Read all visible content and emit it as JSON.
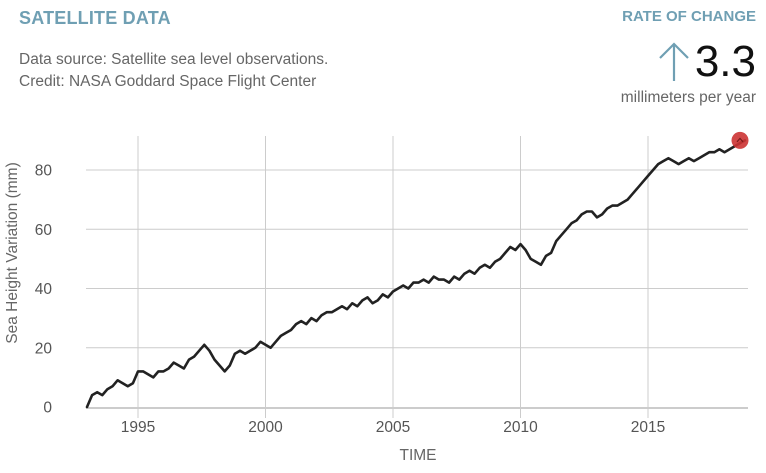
{
  "header": {
    "title": "SATELLITE DATA",
    "source_line1": "Data source: Satellite sea level observations.",
    "source_line2": "Credit: NASA Goddard Space Flight Center"
  },
  "rate": {
    "label": "RATE OF CHANGE",
    "arrow_icon": "up-arrow-icon",
    "value": "3.3",
    "unit": "millimeters per year"
  },
  "colors": {
    "accent": "#6f9fb3",
    "line": "#222222",
    "marker": "#cc3333",
    "grid": "#cccccc"
  },
  "chart_data": {
    "type": "line",
    "xlabel": "TIME",
    "ylabel": "Sea Height Variation (mm)",
    "xlim": [
      1993.0,
      2018.9
    ],
    "ylim": [
      0,
      90
    ],
    "x_ticks": [
      1995,
      2000,
      2005,
      2010,
      2015
    ],
    "y_ticks": [
      0,
      20,
      40,
      60,
      80
    ],
    "grid": true,
    "series": [
      {
        "x": [
          1993.0,
          1993.2,
          1993.4,
          1993.6,
          1993.8,
          1994.0,
          1994.2,
          1994.4,
          1994.6,
          1994.8,
          1995.0,
          1995.2,
          1995.4,
          1995.6,
          1995.8,
          1996.0,
          1996.2,
          1996.4,
          1996.6,
          1996.8,
          1997.0,
          1997.2,
          1997.4,
          1997.6,
          1997.8,
          1998.0,
          1998.2,
          1998.4,
          1998.6,
          1998.8,
          1999.0,
          1999.2,
          1999.4,
          1999.6,
          1999.8,
          2000.0,
          2000.2,
          2000.4,
          2000.6,
          2000.8,
          2001.0,
          2001.2,
          2001.4,
          2001.6,
          2001.8,
          2002.0,
          2002.2,
          2002.4,
          2002.6,
          2002.8,
          2003.0,
          2003.2,
          2003.4,
          2003.6,
          2003.8,
          2004.0,
          2004.2,
          2004.4,
          2004.6,
          2004.8,
          2005.0,
          2005.2,
          2005.4,
          2005.6,
          2005.8,
          2006.0,
          2006.2,
          2006.4,
          2006.6,
          2006.8,
          2007.0,
          2007.2,
          2007.4,
          2007.6,
          2007.8,
          2008.0,
          2008.2,
          2008.4,
          2008.6,
          2008.8,
          2009.0,
          2009.2,
          2009.4,
          2009.6,
          2009.8,
          2010.0,
          2010.2,
          2010.4,
          2010.6,
          2010.8,
          2011.0,
          2011.2,
          2011.4,
          2011.6,
          2011.8,
          2012.0,
          2012.2,
          2012.4,
          2012.6,
          2012.8,
          2013.0,
          2013.2,
          2013.4,
          2013.6,
          2013.8,
          2014.0,
          2014.2,
          2014.4,
          2014.6,
          2014.8,
          2015.0,
          2015.2,
          2015.4,
          2015.6,
          2015.8,
          2016.0,
          2016.2,
          2016.4,
          2016.6,
          2016.8,
          2017.0,
          2017.2,
          2017.4,
          2017.6,
          2017.8,
          2018.0,
          2018.2,
          2018.4,
          2018.6,
          2018.8
        ],
        "y": [
          0,
          4,
          5,
          4,
          6,
          7,
          9,
          8,
          7,
          8,
          12,
          12,
          11,
          10,
          12,
          12,
          13,
          15,
          14,
          13,
          16,
          17,
          19,
          21,
          19,
          16,
          14,
          12,
          14,
          18,
          19,
          18,
          19,
          20,
          22,
          21,
          20,
          22,
          24,
          25,
          26,
          28,
          29,
          28,
          30,
          29,
          31,
          32,
          32,
          33,
          34,
          33,
          35,
          34,
          36,
          37,
          35,
          36,
          38,
          37,
          39,
          40,
          41,
          40,
          42,
          42,
          43,
          42,
          44,
          43,
          43,
          42,
          44,
          43,
          45,
          46,
          45,
          47,
          48,
          47,
          49,
          50,
          52,
          54,
          53,
          55,
          53,
          50,
          49,
          48,
          51,
          52,
          56,
          58,
          60,
          62,
          63,
          65,
          66,
          66,
          64,
          65,
          67,
          68,
          68,
          69,
          70,
          72,
          74,
          76,
          78,
          80,
          82,
          83,
          84,
          83,
          82,
          83,
          84,
          83,
          84,
          85,
          86,
          86,
          87,
          86,
          87,
          88,
          89,
          90
        ]
      }
    ],
    "end_marker": {
      "x": 2018.8,
      "y": 90
    }
  }
}
